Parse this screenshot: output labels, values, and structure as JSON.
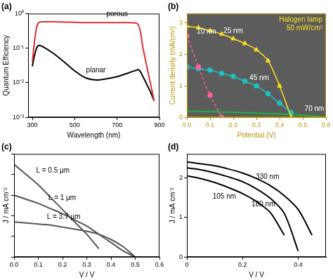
{
  "chart_data": [
    {
      "type": "line",
      "title": "(a)",
      "x_label": "Wavelength (nm)",
      "y_label": "Quantum Efficiency",
      "log": "y",
      "grid": false,
      "xlim": [
        280,
        900
      ],
      "xticks": [
        300,
        500,
        700,
        900
      ],
      "ylim": [
        0.001,
        1
      ],
      "yticks": [
        {
          "value": 0.001,
          "label": "10⁻³"
        },
        {
          "value": 0.01,
          "label": "10⁻²"
        },
        {
          "value": 0.1,
          "label": "10⁻¹"
        },
        {
          "value": 1,
          "label": "10⁰"
        }
      ],
      "x": [
        300,
        310,
        320,
        330,
        350,
        400,
        450,
        500,
        550,
        600,
        650,
        700,
        750,
        790,
        800,
        810,
        820,
        840,
        860,
        875
      ],
      "series": [
        {
          "name": "porous",
          "color": "#e03030",
          "values": [
            0.04,
            0.15,
            0.4,
            0.55,
            0.58,
            0.58,
            0.57,
            0.56,
            0.55,
            0.55,
            0.55,
            0.55,
            0.55,
            0.53,
            0.48,
            0.3,
            0.12,
            0.03,
            0.008,
            0.003
          ]
        },
        {
          "name": "planar",
          "color": "#000000",
          "values": [
            0.03,
            0.06,
            0.1,
            0.12,
            0.11,
            0.07,
            0.04,
            0.022,
            0.014,
            0.012,
            0.013,
            0.015,
            0.019,
            0.023,
            0.024,
            0.021,
            0.016,
            0.009,
            0.005,
            0.003
          ]
        }
      ]
    },
    {
      "type": "line",
      "title": "(b)",
      "x_label": "Potential (V)",
      "y_label": "Current density (mA/cm²)",
      "grid": false,
      "annotations": [
        "Halogen lamp",
        "50 mW/cm²"
      ],
      "xlim": [
        0,
        0.6
      ],
      "xticks": [
        {
          "value": 0,
          "label": "0.0"
        },
        0.1,
        0.2,
        0.3,
        0.4,
        0.5,
        0.6
      ],
      "ylim": [
        0,
        3.3
      ],
      "yticks": [
        0,
        1,
        2,
        3
      ],
      "x": [
        0,
        0.05,
        0.1,
        0.15,
        0.2,
        0.25,
        0.3,
        0.35,
        0.4,
        0.45,
        0.5,
        0.55,
        0.6
      ],
      "series": [
        {
          "name": "10 nm",
          "color": "#ff5fa0",
          "marker": "circle",
          "line_style": "dashed",
          "values": [
            2.6,
            1.6,
            0.7,
            0,
            null,
            null,
            null,
            null,
            null,
            null,
            null,
            null,
            null
          ]
        },
        {
          "name": "25 nm",
          "color": "#ffe020",
          "marker": "triangle",
          "values": [
            2.9,
            2.85,
            2.75,
            2.65,
            2.5,
            2.35,
            2.15,
            1.8,
            1.0,
            0,
            null,
            null,
            null
          ]
        },
        {
          "name": "45 nm",
          "color": "#20c0c0",
          "marker": "circle",
          "values": [
            1.6,
            1.55,
            1.5,
            1.4,
            1.3,
            1.15,
            1.0,
            0.75,
            0.45,
            0.15,
            null,
            null,
            null
          ]
        },
        {
          "name": "70 nm",
          "color": "#20b040",
          "values": [
            0.2,
            0.19,
            0.18,
            0.17,
            0.16,
            0.15,
            0.14,
            0.12,
            0.11,
            0.09,
            0.07,
            0.04,
            0.01
          ]
        }
      ]
    },
    {
      "type": "line",
      "title": "(c)",
      "x_label": "V / V",
      "y_label": "J / mA cm⁻²",
      "grid": false,
      "tick_labels": "x",
      "xlim": [
        0,
        0.6
      ],
      "xticks": [
        {
          "value": 0,
          "label": "0.0"
        },
        0.1,
        0.2,
        0.3,
        0.4,
        0.5,
        0.6
      ],
      "ylim": [
        0,
        5
      ],
      "yticks": [
        0,
        1,
        2,
        3,
        4,
        5
      ],
      "x": [
        0,
        0.05,
        0.1,
        0.15,
        0.2,
        0.25,
        0.3,
        0.35,
        0.4,
        0.45,
        0.5
      ],
      "series": [
        {
          "name": "L = 0.5 µm",
          "color": "#555555",
          "values": [
            4.5,
            4.0,
            3.5,
            2.9,
            2.3,
            1.7,
            1.1,
            0.4,
            null,
            null,
            null
          ]
        },
        {
          "name": "L = 1 µm",
          "color": "#555555",
          "values": [
            3.0,
            2.8,
            2.6,
            2.35,
            2.1,
            1.8,
            1.5,
            1.1,
            0.7,
            0.3,
            0
          ]
        },
        {
          "name": "L = 3.7 µm",
          "color": "#555555",
          "values": [
            1.7,
            1.65,
            1.6,
            1.55,
            1.45,
            1.35,
            1.25,
            1.1,
            0.85,
            0.5,
            0
          ]
        }
      ]
    },
    {
      "type": "line",
      "title": "(d)",
      "x_label": "V / V",
      "y_label": "J / mA cm⁻²",
      "grid": false,
      "xlim": [
        0,
        0.5
      ],
      "xticks": [
        0,
        0.2,
        0.4
      ],
      "ylim": [
        0,
        2.6
      ],
      "yticks": [
        0,
        1,
        2
      ],
      "x": [
        0,
        0.05,
        0.1,
        0.15,
        0.2,
        0.25,
        0.3,
        0.35,
        0.4,
        0.45,
        0.5
      ],
      "series": [
        {
          "name": "330 nm",
          "color": "#000000",
          "values": [
            2.4,
            2.35,
            2.3,
            2.22,
            2.12,
            1.98,
            1.8,
            1.55,
            1.2,
            0.55,
            null
          ]
        },
        {
          "name": "180 nm",
          "color": "#000000",
          "values": [
            2.25,
            2.2,
            2.12,
            2.02,
            1.9,
            1.72,
            1.48,
            1.1,
            0.15,
            null,
            null
          ]
        },
        {
          "name": "105 nm",
          "color": "#000000",
          "values": [
            2.05,
            1.98,
            1.88,
            1.75,
            1.6,
            1.4,
            1.12,
            0.55,
            null,
            null,
            null
          ]
        }
      ]
    }
  ]
}
